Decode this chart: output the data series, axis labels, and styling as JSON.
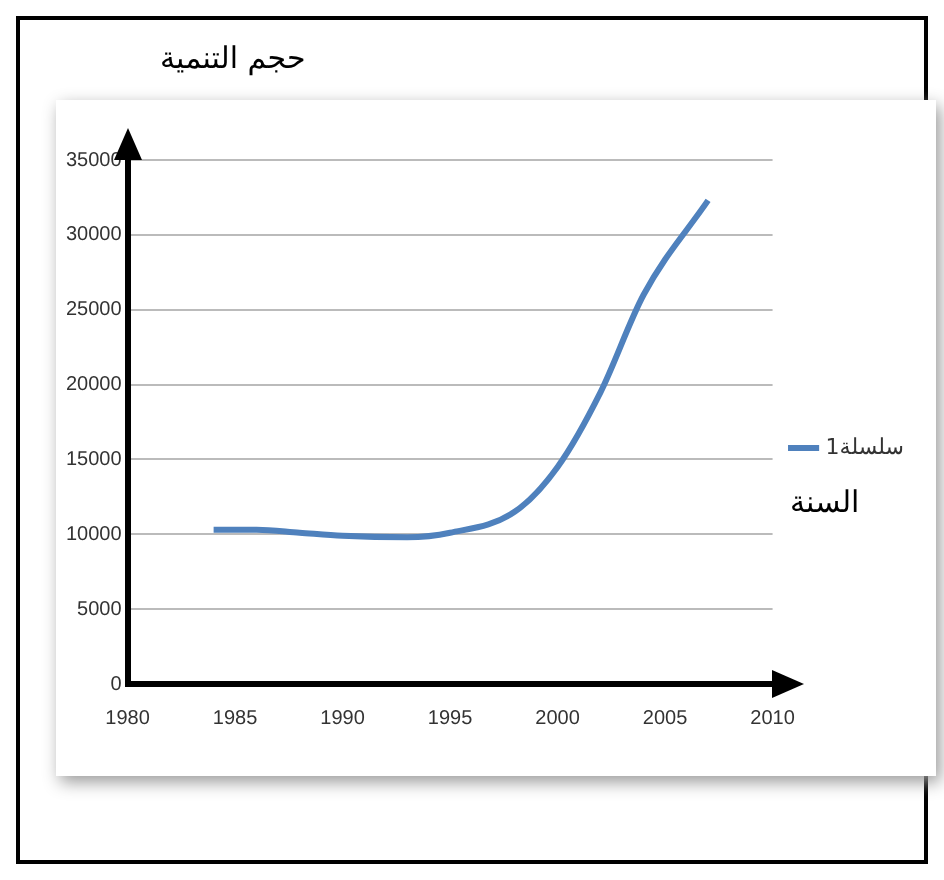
{
  "chart_data": {
    "type": "line",
    "xlabel": "السنة",
    "ylabel": "حجم التنمية",
    "x": [
      1984,
      1986,
      1988,
      1990,
      1993,
      1995,
      1998,
      2000,
      2002,
      2004,
      2007
    ],
    "series": [
      {
        "name": "سلسلة1",
        "color": "#4f81bd",
        "values": [
          10300,
          10300,
          10100,
          9900,
          9800,
          10100,
          11500,
          14500,
          19500,
          26000,
          32300
        ]
      }
    ],
    "xlim": [
      1980,
      2010
    ],
    "xticks": [
      1980,
      1985,
      1990,
      1995,
      2000,
      2005,
      2010
    ],
    "ylim": [
      0,
      35000
    ],
    "yticks": [
      0,
      5000,
      10000,
      15000,
      20000,
      25000,
      30000,
      35000
    ],
    "grid": "y",
    "legend": "right",
    "marker": "none",
    "line_style": "solid"
  }
}
